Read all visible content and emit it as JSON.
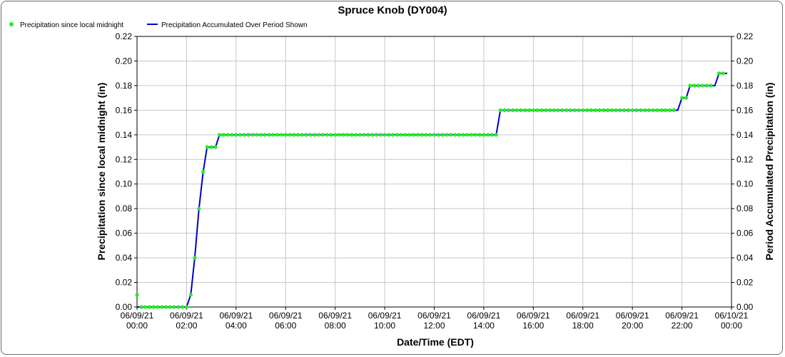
{
  "chart_data": {
    "type": "line",
    "title": "Spruce Knob (DY004)",
    "xlabel": "Date/Time (EDT)",
    "ylabel_left": "Precipitation since local midnight (in)",
    "ylabel_right": "Period Accumulated Precipitation (in)",
    "ylim": [
      0,
      0.22
    ],
    "xlim_hours": [
      0,
      24
    ],
    "grid": true,
    "legend_position": "top-left",
    "y_ticks": [
      "0.00",
      "0.02",
      "0.04",
      "0.06",
      "0.08",
      "0.10",
      "0.12",
      "0.14",
      "0.16",
      "0.18",
      "0.20",
      "0.22"
    ],
    "x_ticks": [
      {
        "hour": 0,
        "date": "06/09/21",
        "time": "00:00"
      },
      {
        "hour": 2,
        "date": "06/09/21",
        "time": "02:00"
      },
      {
        "hour": 4,
        "date": "06/09/21",
        "time": "04:00"
      },
      {
        "hour": 6,
        "date": "06/09/21",
        "time": "06:00"
      },
      {
        "hour": 8,
        "date": "06/09/21",
        "time": "08:00"
      },
      {
        "hour": 10,
        "date": "06/09/21",
        "time": "10:00"
      },
      {
        "hour": 12,
        "date": "06/09/21",
        "time": "12:00"
      },
      {
        "hour": 14,
        "date": "06/09/21",
        "time": "14:00"
      },
      {
        "hour": 16,
        "date": "06/09/21",
        "time": "16:00"
      },
      {
        "hour": 18,
        "date": "06/09/21",
        "time": "18:00"
      },
      {
        "hour": 20,
        "date": "06/09/21",
        "time": "20:00"
      },
      {
        "hour": 22,
        "date": "06/09/21",
        "time": "22:00"
      },
      {
        "hour": 24,
        "date": "06/10/21",
        "time": "00:00"
      }
    ],
    "series": [
      {
        "name": "Precipitation since local midnight",
        "marker": "circle",
        "color": "#22ee22",
        "step_hours": 0.1667,
        "points": [
          [
            0.0,
            0.01
          ],
          [
            0.17,
            0.0
          ],
          [
            0.33,
            0.0
          ],
          [
            0.5,
            0.0
          ],
          [
            0.67,
            0.0
          ],
          [
            0.83,
            0.0
          ],
          [
            1.0,
            0.0
          ],
          [
            1.17,
            0.0
          ],
          [
            1.33,
            0.0
          ],
          [
            1.5,
            0.0
          ],
          [
            1.67,
            0.0
          ],
          [
            1.83,
            0.0
          ],
          [
            2.0,
            0.0
          ],
          [
            2.17,
            0.01
          ],
          [
            2.33,
            0.04
          ],
          [
            2.5,
            0.08
          ],
          [
            2.67,
            0.11
          ],
          [
            2.83,
            0.13
          ],
          [
            3.0,
            0.13
          ],
          [
            3.17,
            0.13
          ],
          [
            3.33,
            0.14
          ]
        ],
        "plateaus": [
          {
            "from": 3.33,
            "to": 14.5,
            "value": 0.14
          },
          {
            "from": 14.67,
            "to": 21.83,
            "value": 0.16
          },
          {
            "from": 22.0,
            "to": 22.17,
            "value": 0.17
          },
          {
            "from": 22.33,
            "to": 23.33,
            "value": 0.18
          },
          {
            "from": 23.5,
            "to": 23.83,
            "value": 0.19
          }
        ]
      },
      {
        "name": "Precipitation Accumulated Over Period Shown",
        "color": "#0000cc",
        "points": [
          [
            0.0,
            0.0
          ],
          [
            2.0,
            0.0
          ],
          [
            2.17,
            0.01
          ],
          [
            2.33,
            0.04
          ],
          [
            2.5,
            0.08
          ],
          [
            2.67,
            0.11
          ],
          [
            2.83,
            0.13
          ],
          [
            3.17,
            0.13
          ],
          [
            3.33,
            0.14
          ],
          [
            14.5,
            0.14
          ],
          [
            14.67,
            0.16
          ],
          [
            21.83,
            0.16
          ],
          [
            22.0,
            0.17
          ],
          [
            22.17,
            0.17
          ],
          [
            22.33,
            0.18
          ],
          [
            23.33,
            0.18
          ],
          [
            23.5,
            0.19
          ],
          [
            23.83,
            0.19
          ]
        ]
      }
    ]
  }
}
